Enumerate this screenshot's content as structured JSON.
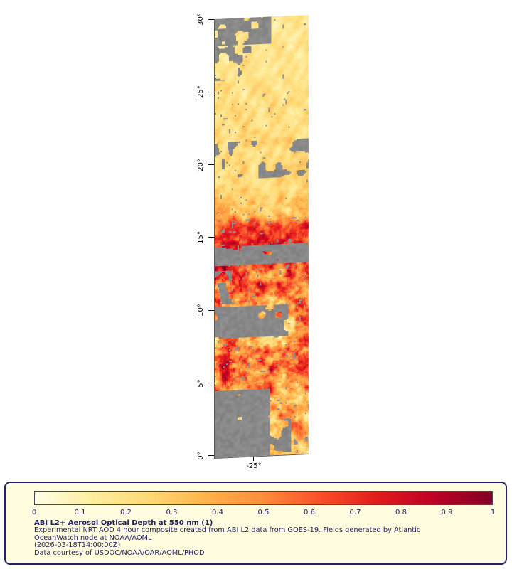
{
  "figure": {
    "y_ticks": [
      "30°",
      "25°",
      "20°",
      "15°",
      "10°",
      "5°",
      "0°"
    ],
    "x_ticks": [
      "-25°"
    ]
  },
  "colorbar": {
    "tick_labels": [
      "0",
      "0.1",
      "0.2",
      "0.3",
      "0.4",
      "0.5",
      "0.6",
      "0.7",
      "0.8",
      "0.9",
      "1"
    ],
    "stops": [
      {
        "v": 0,
        "c": "#ffffe8"
      },
      {
        "v": 0.125,
        "c": "#ffeda0"
      },
      {
        "v": 0.25,
        "c": "#fed976"
      },
      {
        "v": 0.375,
        "c": "#feb24c"
      },
      {
        "v": 0.5,
        "c": "#fd8d3c"
      },
      {
        "v": 0.625,
        "c": "#fc4e2a"
      },
      {
        "v": 0.75,
        "c": "#e31a1c"
      },
      {
        "v": 0.875,
        "c": "#bd0026"
      },
      {
        "v": 1,
        "c": "#800026"
      }
    ]
  },
  "caption": {
    "title": "ABI L2+ Aerosol Optical Depth at 550 nm (1)",
    "lines": [
      "Experimental NRT AOD 4 hour composite created from ABI L2 data from GOES-19. Fields generated by Atlantic",
      "OceanWatch node at NOAA/AOML",
      "(2026-03-18T14:00:00Z)",
      "Data courtesy of USDOC/NOAA/OAR/AOML/PHOD"
    ]
  },
  "colors": {
    "panel_bg": "#fffcdf",
    "panel_border": "#22226a",
    "text": "#1f1f5f",
    "missing_data": "#8d8d8d"
  },
  "chart_data": {
    "type": "heatmap",
    "title": "ABI L2+ Aerosol Optical Depth at 550 nm (1)",
    "x_axis": {
      "ticks": [
        "-25°"
      ]
    },
    "y_axis": {
      "ticks": [
        "0°",
        "5°",
        "10°",
        "15°",
        "20°",
        "25°",
        "30°"
      ],
      "range_deg": [
        0,
        30
      ]
    },
    "colorbar_range": [
      0,
      1
    ],
    "colorbar_ticks": [
      0,
      0.1,
      0.2,
      0.3,
      0.4,
      0.5,
      0.6,
      0.7,
      0.8,
      0.9,
      1
    ],
    "palette": "YlOrRd",
    "missing_data_color": "#8d8d8d",
    "aod_profile": [
      [
        30,
        0.17
      ],
      [
        24,
        0.21
      ],
      [
        18,
        0.26
      ],
      [
        16.6,
        0.34
      ],
      [
        15.8,
        0.62
      ],
      [
        15,
        0.74
      ],
      [
        13.6,
        0.68
      ],
      [
        12.2,
        0.6
      ],
      [
        10.8,
        0.52
      ],
      [
        9.2,
        0.44
      ],
      [
        7.5,
        0.5
      ],
      [
        6,
        0.6
      ],
      [
        5,
        0.55
      ],
      [
        3.5,
        0.4
      ],
      [
        0,
        0.33
      ]
    ],
    "aod_variance": [
      [
        30,
        0.07
      ],
      [
        18,
        0.09
      ],
      [
        16,
        0.2
      ],
      [
        13,
        0.3
      ],
      [
        10,
        0.3
      ],
      [
        6,
        0.32
      ],
      [
        4,
        0.26
      ],
      [
        0,
        0.18
      ]
    ],
    "gray_regions": [
      {
        "lat": [
          28.2,
          30
        ],
        "u": [
          0,
          0.6
        ],
        "density": 0.72
      },
      {
        "lat": [
          25.8,
          28.4
        ],
        "u": [
          0,
          0.38
        ],
        "density": 0.4
      },
      {
        "lat": [
          19,
          21.6
        ],
        "u": [
          0,
          1
        ],
        "density": 0.36
      },
      {
        "lat": [
          13.15,
          14.45
        ],
        "u": [
          0,
          1
        ],
        "density": 0.86
      },
      {
        "lat": [
          10.5,
          12.8
        ],
        "u": [
          0,
          0.18
        ],
        "density": 0.5
      },
      {
        "lat": [
          8.2,
          10.3
        ],
        "u": [
          0,
          0.78
        ],
        "density": 0.72
      },
      {
        "lat": [
          0,
          4.6
        ],
        "u": [
          0,
          0.58
        ],
        "density": 0.93
      },
      {
        "lat": [
          0,
          2.5
        ],
        "u": [
          0.35,
          0.8
        ],
        "density": 0.5
      }
    ]
  }
}
